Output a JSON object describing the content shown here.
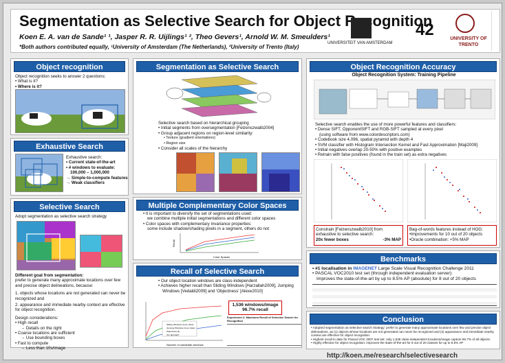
{
  "header": {
    "title": "Segmentation as Selective Search for Object Recognition",
    "authors": "Koen E. A. van de Sande¹ ¹,  Jasper R. R. Uijlings¹ ², Theo Gevers¹, Arnold W. M. Smeulders¹",
    "affiliation": "*Both authors contributed equally, ¹University of Amsterdam (The Netherlands), ²University of Trento (Italy)",
    "number": "42",
    "logo_uva": "UNIVERSITEIT VAN AMSTERDAM",
    "logo_trento": "UNIVERSITY OF TRENTO"
  },
  "object_recognition": {
    "title": "Object recognition",
    "intro": "Object recognition seeks to answer 2 questions:",
    "q1": "• What is it?",
    "q2": "• Where is it?"
  },
  "exhaustive": {
    "title": "Exhaustive Search",
    "head": "Exhaustive search:",
    "b1": "• Current state-of-the-art",
    "b2": "• # windows to evaluate:",
    "b2b": "100,000 – 1,000,000",
    "b3": "→ Simple-to-compute features",
    "b4": "→ Weak classifiers"
  },
  "selective": {
    "title": "Selective Search",
    "intro": "Adopt segmentation as selective search strategy",
    "goal_head": "Different goal from segmentation:",
    "goal": "prefer to generate many approximate locations over few and precise object delineations, because:",
    "r1": "1.  objects whose locations are not generated can never be recognized and",
    "r2": "2.  appearance and immediate nearby context are effective for object recognition.",
    "dc_head": "Design considerations:",
    "d1": "• High recall",
    "d1a": "→ Details on the right",
    "d2": "• Coarse locations are sufficient",
    "d2a": "→ Use bounding boxes",
    "d3": "• Fast to compute",
    "d3a": "→ Less than 10s/image"
  },
  "seg_selective": {
    "title": "Segmentation as Selective Search",
    "intro": "Selective search based on hierarchical grouping",
    "b1": "• Initial segments from oversegmentation [Felzenszwalb2004]",
    "b2": "• Group adjacent regions on region-level similarity:",
    "b2a": "• Texture (gradient orientations)",
    "b2b": "• Region size",
    "b3": "• Consider all scales of the hierarchy"
  },
  "color_spaces": {
    "title": "Multiple Complementary Color Spaces",
    "b1": "• It is important to diversify the set of segmentations used:",
    "b1a": "we combine multiple initial segmentations and different color spaces",
    "b2": "• Color spaces with complementary invariance properties:",
    "b2a": "some include shadow/shading pixels in a segment, others do not",
    "ylabel": "Recall",
    "xlabel": "Color Spaces"
  },
  "recall": {
    "title": "Recall of Selective Search",
    "b1": "• Our object location windows are class-independent",
    "b2": "• Achieves higher recall than Sliding Windows [Harzallah2009], Jumping",
    "b2a": "Windows [Vedaldi2009] and 'Objectness' [Alexe2010]",
    "badge1": "1,536 windows/image",
    "badge2": "96.7% recall",
    "xlabel": "Number of candidate windows",
    "table_title": "Experiment 2: Maximum Recall of Selective Search for Recognition",
    "legend": [
      "Sliding Windows (4 per class)",
      "Jumping Windows (4 per class)",
      "Objectness [1]",
      "Our approach"
    ]
  },
  "accuracy": {
    "title": "Object Recognition Accuracy",
    "system": "Object Recognition System: Training Pipeline",
    "intro": "Selective search enables the use of more powerful features and classifiers:",
    "b1": "• Dense SIFT, OpponentSIFT and RGB-SIFT sampled at every pixel",
    "b1a": "(using software from www.colordescriptors.com)",
    "b2": "• Codebook size 4,096, spatial pyramid with depth 4",
    "b3": "• SVM classifier with Histogram Intersection Kernel and Fast Approximation [Maji2009]",
    "b4": "• Initial negatives overlap 20-50% with positive examples",
    "b5": "• Retrain with false positives (found in the train set) as extra negatives",
    "box1a": "Constrain [Felzenszwalb2010] from exhaustive to selective search:",
    "box1b": "20x fewer boxes",
    "box1c": "-3% MAP",
    "box2a": "Bag-of-words features instead of HOG:",
    "box2b": "•Improvements for 10 out of 20 objects",
    "box2c": "•Oracle combination: +5% MAP"
  },
  "benchmarks": {
    "title": "Benchmarks",
    "b1a": "• #1 localisation in",
    "b1b": "IMAGENET",
    "b1c": "Large Scale Visual Recognition Challenge 2011",
    "b2": "• PASCAL VOC2010 test set (through independent evaluation server):",
    "b2a": "Improves the state-of-the-art by up to 8.5% AP (absolute) for 8 out of 20 objects"
  },
  "conclusion": {
    "title": "Conclusion",
    "b1": "• Adopted segmentation as selective search strategy: prefer to generate many approximate locations over few and precise object delineations, as (1) objects whose locations are not generated can never be recognized and (2) appearance and immediate nearby context are effective for object recognition.",
    "b2": "• Highest recall to date for Pascal VOC 2007 test set: only 1,536 class-independent locations/image capture 96.7% of all objects.",
    "b3": "• Highly effective for object recognition: improves the state-of-the-art for 8 out of 20 classes for up to 8.5% AP"
  },
  "footer": {
    "url": "http://koen.me/research/selectivesearch"
  },
  "colors": {
    "accent": "#1f5fa8",
    "highlight": "#c00000"
  }
}
